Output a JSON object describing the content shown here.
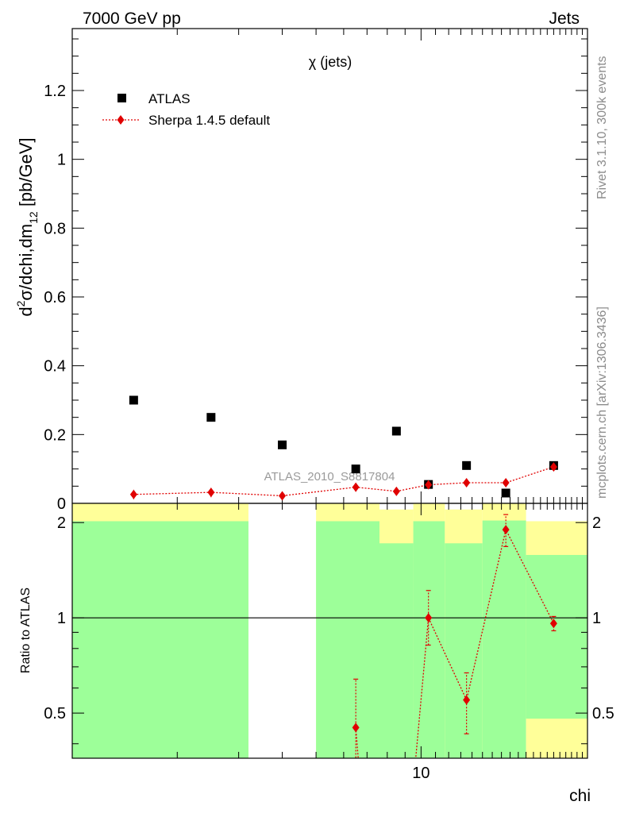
{
  "header": {
    "left": "7000 GeV pp",
    "right": "Jets",
    "side_top": "Rivet 3.1.10,  300k events",
    "side_bottom": "mcplots.cern.ch [arXiv:1306.3436]"
  },
  "chart_data": [
    {
      "type": "scatter",
      "panel": "main",
      "title": "χ (jets)",
      "ylabel": "d²σ/dchi,dm₁₂ [pb/GeV]",
      "ylabel_main": "d",
      "ylabel_sup": "2",
      "ylabel_mid": "σ/dchi,dm",
      "ylabel_sub": "12",
      "ylabel_end": " [pb/GeV]",
      "watermark": "ATLAS_2010_S8817804",
      "x_scale": "log",
      "xlim": [
        1.0,
        30.0
      ],
      "ylim": [
        0,
        1.38
      ],
      "y_ticks": [
        0,
        0.2,
        0.4,
        0.6,
        0.8,
        1,
        1.2
      ],
      "y_tick_labels": [
        "0",
        "0.2",
        "0.4",
        "0.6",
        "0.8",
        "1",
        "1.2"
      ],
      "legend_position": "top-left",
      "legend": [
        "ATLAS",
        "Sherpa 1.4.5 default"
      ],
      "series": [
        {
          "name": "ATLAS",
          "marker": "square",
          "color": "#000000",
          "x": [
            1.5,
            2.5,
            4.0,
            6.5,
            8.5,
            10.5,
            13.5,
            17.5,
            24.0
          ],
          "y": [
            0.3,
            0.25,
            0.17,
            0.1,
            0.21,
            0.055,
            0.11,
            0.03,
            0.11
          ]
        },
        {
          "name": "Sherpa 1.4.5 default",
          "marker": "diamond",
          "color": "#e00000",
          "x": [
            1.5,
            2.5,
            4.0,
            6.5,
            8.5,
            10.5,
            13.5,
            17.5,
            24.0
          ],
          "y": [
            0.026,
            0.032,
            0.022,
            0.047,
            0.035,
            0.054,
            0.06,
            0.06,
            0.106
          ],
          "yerr": [
            0.014,
            0.014,
            0.01,
            0.013,
            0.01,
            0.008,
            0.008,
            0.008,
            0.01
          ]
        }
      ]
    },
    {
      "type": "scatter",
      "panel": "ratio",
      "ylabel": "Ratio to ATLAS",
      "xlabel": "chi",
      "x_scale": "log",
      "xlim": [
        1.0,
        30.0
      ],
      "ylim": [
        0.36,
        2.3
      ],
      "x_tick_labels": [
        {
          "value": 10,
          "label": "10"
        }
      ],
      "y_tick_labels": [
        {
          "value": 0.5,
          "label": "0.5"
        },
        {
          "value": 1,
          "label": "1"
        },
        {
          "value": 2,
          "label": "2"
        }
      ],
      "bands": [
        {
          "x0": 1.0,
          "x1": 3.2,
          "green_lo": 0.0,
          "green_hi": 2.02,
          "yellow_lo": 0.0,
          "yellow_hi": 3.0
        },
        {
          "x0": 5.0,
          "x1": 7.6,
          "green_lo": 0.0,
          "green_hi": 2.02,
          "yellow_lo": 0.0,
          "yellow_hi": 3.0
        },
        {
          "x0": 7.6,
          "x1": 9.5,
          "green_lo": 0.0,
          "green_hi": 1.72,
          "yellow_lo": 0.0,
          "yellow_hi": 2.2
        },
        {
          "x0": 9.5,
          "x1": 11.7,
          "green_lo": 0.0,
          "green_hi": 2.02,
          "yellow_lo": 0.0,
          "yellow_hi": 3.0
        },
        {
          "x0": 11.7,
          "x1": 15.0,
          "green_lo": 0.0,
          "green_hi": 1.72,
          "yellow_lo": 0.0,
          "yellow_hi": 2.2
        },
        {
          "x0": 15.0,
          "x1": 20.0,
          "green_lo": 0.0,
          "green_hi": 2.03,
          "yellow_lo": 0.0,
          "yellow_hi": 3.0
        },
        {
          "x0": 20.0,
          "x1": 30.0,
          "green_lo": 0.48,
          "green_hi": 1.58,
          "yellow_lo": 0.0,
          "yellow_hi": 2.02
        }
      ],
      "series": [
        {
          "name": "Sherpa 1.4.5 default",
          "color": "#e00000",
          "x": [
            6.5,
            10.5,
            13.5,
            17.5,
            24.0
          ],
          "y": [
            0.45,
            1.0,
            0.55,
            1.9,
            0.96
          ],
          "ylo": [
            0.3,
            0.82,
            0.43,
            1.68,
            0.91
          ],
          "yhi": [
            0.64,
            1.22,
            0.67,
            2.12,
            1.01
          ]
        }
      ],
      "offscale_line_from": {
        "x": 9.2,
        "y": 0.2
      }
    }
  ]
}
